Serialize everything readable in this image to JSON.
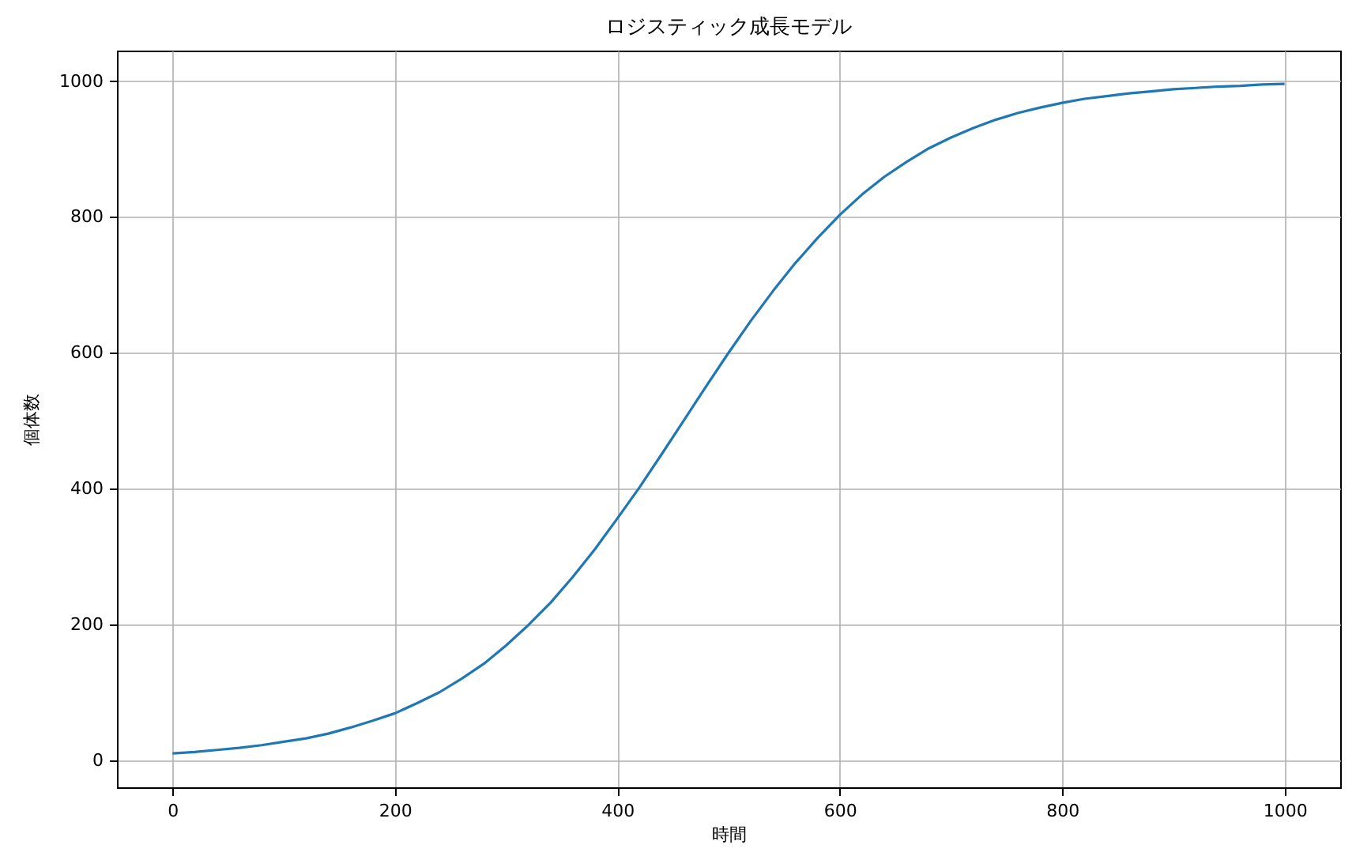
{
  "chart_data": {
    "type": "line",
    "title": "ロジスティック成長モデル",
    "xlabel": "時間",
    "ylabel": "個体数",
    "x": [
      0,
      20,
      40,
      60,
      80,
      100,
      120,
      140,
      160,
      180,
      200,
      220,
      240,
      260,
      280,
      300,
      320,
      340,
      360,
      380,
      400,
      420,
      440,
      460,
      480,
      500,
      520,
      540,
      560,
      580,
      600,
      620,
      640,
      660,
      680,
      700,
      720,
      740,
      760,
      780,
      800,
      820,
      840,
      860,
      880,
      900,
      920,
      940,
      960,
      980,
      1000
    ],
    "series": [
      {
        "color": "#1f77b4",
        "values": [
          10,
          12,
          15,
          18,
          22,
          27,
          32,
          39,
          48,
          58,
          69,
          84,
          100,
          120,
          142,
          169,
          199,
          232,
          270,
          311,
          356,
          402,
          451,
          501,
          551,
          600,
          647,
          691,
          732,
          769,
          803,
          833,
          859,
          881,
          901,
          917,
          931,
          943,
          953,
          961,
          968,
          974,
          978,
          982,
          985,
          988,
          990,
          992,
          993,
          995,
          996
        ]
      }
    ],
    "xlim": [
      -50,
      1050
    ],
    "ylim": [
      -40,
      1045
    ],
    "xticks": [
      0,
      200,
      400,
      600,
      800,
      1000
    ],
    "yticks": [
      0,
      200,
      400,
      600,
      800,
      1000
    ],
    "grid": true
  }
}
